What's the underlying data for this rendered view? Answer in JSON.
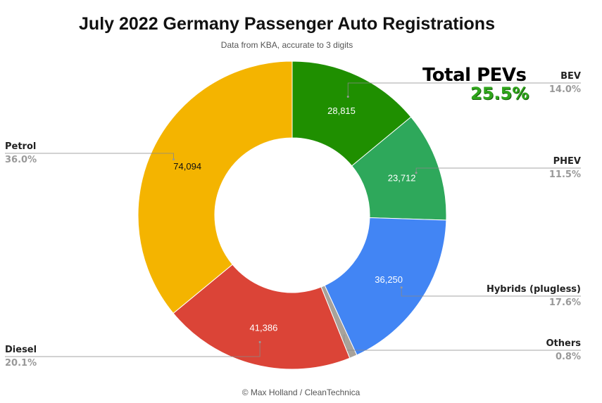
{
  "chart_data": {
    "type": "pie",
    "donut": true,
    "title": "July 2022 Germany Passenger Auto Registrations",
    "subtitle": "Data from KBA, accurate to 3 digits",
    "slices": [
      {
        "name": "BEV",
        "value": 28815,
        "value_label": "28,815",
        "percent_label": "14.0%",
        "color": "#1f8f00"
      },
      {
        "name": "PHEV",
        "value": 23712,
        "value_label": "23,712",
        "percent_label": "11.5%",
        "color": "#2ea85b"
      },
      {
        "name": "Hybrids (plugless)",
        "value": 36250,
        "value_label": "36,250",
        "percent_label": "17.6%",
        "color": "#4285f4"
      },
      {
        "name": "Others",
        "value": 1650,
        "value_label": "",
        "percent_label": "0.8%",
        "color": "#a8a29a"
      },
      {
        "name": "Diesel",
        "value": 41386,
        "value_label": "41,386",
        "percent_label": "20.1%",
        "color": "#db4437"
      },
      {
        "name": "Petrol",
        "value": 74094,
        "value_label": "74,094",
        "percent_label": "36.0%",
        "color": "#f4b400"
      }
    ],
    "legend": "outside labels with leader lines"
  },
  "annotation": {
    "total_label": "Total PEVs",
    "total_value": "25.5%"
  },
  "credit": "© Max Holland / CleanTechnica"
}
